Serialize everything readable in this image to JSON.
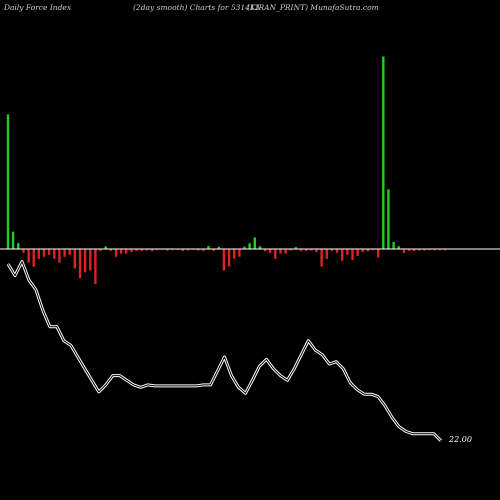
{
  "header": {
    "left": "Daily Force  Index",
    "middle": "(2day smooth) Charts for 531413",
    "right": "(KIRAN_PRINT) MunafaSutra.com"
  },
  "colors": {
    "background": "#000000",
    "positive_bar": "#22cc22",
    "negative_bar": "#dd2222",
    "zero_line": "#ffffff",
    "price_line_outer": "#ffffff",
    "price_line_inner": "#000000"
  },
  "chart_data": {
    "type": "bar",
    "title": "",
    "bars_range": [
      -1.0,
      5.3
    ],
    "bars": [
      3.5,
      0.45,
      0.15,
      -0.1,
      -0.35,
      -0.45,
      -0.25,
      -0.2,
      -0.15,
      -0.25,
      -0.35,
      -0.2,
      -0.15,
      -0.5,
      -0.75,
      -0.6,
      -0.55,
      -0.9,
      -0.05,
      0.07,
      -0.05,
      -0.2,
      -0.12,
      -0.12,
      -0.08,
      -0.05,
      -0.05,
      -0.04,
      -0.06,
      -0.03,
      -0.02,
      -0.04,
      -0.03,
      -0.02,
      -0.05,
      -0.04,
      -0.02,
      -0.04,
      -0.05,
      0.08,
      -0.05,
      0.06,
      -0.55,
      -0.45,
      -0.25,
      -0.2,
      0.06,
      0.15,
      0.3,
      0.07,
      -0.06,
      -0.1,
      -0.25,
      -0.12,
      -0.12,
      -0.04,
      0.05,
      -0.06,
      -0.05,
      -0.04,
      -0.08,
      -0.45,
      -0.25,
      -0.05,
      -0.1,
      -0.3,
      -0.15,
      -0.28,
      -0.18,
      -0.08,
      -0.06,
      -0.03,
      -0.22,
      5.0,
      1.55,
      0.18,
      0.07,
      -0.1,
      -0.05,
      -0.05,
      -0.04,
      -0.04,
      -0.03,
      -0.03,
      -0.03,
      -0.03
    ],
    "price_range": [
      21.2,
      26.1
    ],
    "price": [
      25.8,
      25.55,
      25.85,
      25.45,
      25.25,
      24.8,
      24.45,
      24.45,
      24.15,
      24.05,
      23.8,
      23.55,
      23.3,
      23.05,
      23.2,
      23.4,
      23.4,
      23.3,
      23.2,
      23.15,
      23.2,
      23.18,
      23.18,
      23.18,
      23.18,
      23.18,
      23.18,
      23.18,
      23.2,
      23.2,
      23.5,
      23.8,
      23.4,
      23.15,
      23.02,
      23.3,
      23.6,
      23.75,
      23.55,
      23.4,
      23.3,
      23.55,
      23.85,
      24.15,
      23.95,
      23.85,
      23.65,
      23.7,
      23.55,
      23.25,
      23.1,
      23.0,
      23.0,
      22.95,
      22.75,
      22.5,
      22.3,
      22.2,
      22.15,
      22.15,
      22.15,
      22.15,
      22.0
    ],
    "last_value_label": "22.00"
  }
}
